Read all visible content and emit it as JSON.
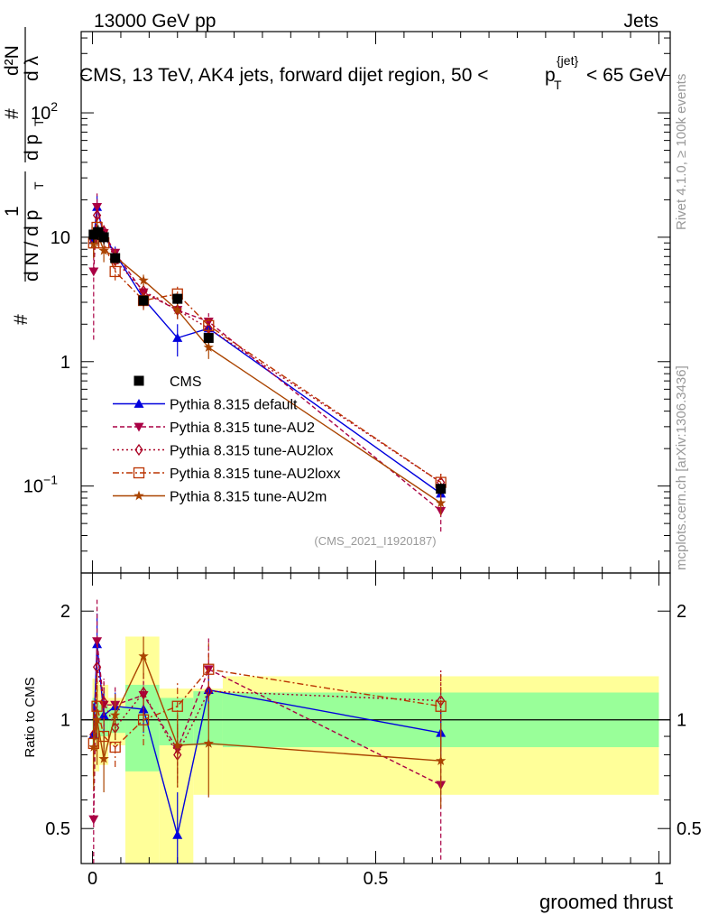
{
  "header": {
    "left": "13000 GeV pp",
    "right": "Jets"
  },
  "title": {
    "prefix": "CMS, 13 TeV, AK4 jets, forward dijet region, 50 <",
    "p": "p",
    "sub": "T",
    "sup": "{jet}",
    "suffix": "< 65 GeV"
  },
  "side_labels": {
    "rivet": "Rivet 4.1.0, ≥ 100k events",
    "mcplots": "mcplots.cern.ch [arXiv:1306.3436]"
  },
  "analysis_ref": "(CMS_2021_I1920187)",
  "ylabel_top": {
    "hash1": "#",
    "one": "1",
    "dn": "d N / d p",
    "dn_sub": "T",
    "hash2": "#",
    "d2n": "d²N",
    "dpt": "d p",
    "dpt_sub": "T",
    "dlam": "d λ"
  },
  "chart_data": [
    {
      "type": "scatter",
      "panel": "main",
      "xlabel": "groomed thrust",
      "ylabel": "1/dN/dpT d²N/dpT dλ",
      "yscale": "log",
      "xlim": [
        -0.02,
        1.02
      ],
      "ylim": [
        0.02,
        450
      ],
      "ytick_labels": [
        {
          "value": 0.1,
          "base": "10",
          "exp": "−1"
        },
        {
          "value": 1,
          "base": "1",
          "exp": ""
        },
        {
          "value": 10,
          "base": "10",
          "exp": ""
        },
        {
          "value": 100,
          "base": "10",
          "exp": "2"
        }
      ],
      "series": [
        {
          "name": "CMS",
          "color": "#000000",
          "marker": "square",
          "line": "none",
          "x": [
            0.002,
            0.01,
            0.02,
            0.04,
            0.09,
            0.15,
            0.205,
            0.615
          ],
          "y": [
            10.5,
            11.0,
            10.0,
            6.8,
            3.1,
            3.2,
            1.55,
            0.095
          ],
          "err": [
            1.5,
            1.5,
            1.2,
            0.6,
            0.3,
            0.3,
            0.15,
            0.01
          ]
        },
        {
          "name": "Pythia 8.315 default",
          "color": "#0000dd",
          "marker": "triangle-up",
          "line": "solid",
          "x": [
            0.002,
            0.008,
            0.02,
            0.04,
            0.09,
            0.15,
            0.205,
            0.615
          ],
          "y": [
            9.5,
            17.5,
            10.3,
            7.4,
            3.2,
            1.55,
            1.85,
            0.087
          ],
          "err": [
            2.5,
            4.0,
            2.0,
            1.0,
            0.5,
            0.45,
            0.35,
            0.015
          ]
        },
        {
          "name": "Pythia 8.315 tune-AU2",
          "color": "#aa0044",
          "marker": "triangle-down",
          "line": "dashed",
          "x": [
            0.002,
            0.008,
            0.02,
            0.04,
            0.09,
            0.15,
            0.205,
            0.615
          ],
          "y": [
            5.3,
            17.5,
            10.8,
            7.5,
            3.6,
            2.6,
            2.1,
            0.063
          ],
          "err": [
            3.8,
            5.0,
            2.0,
            1.0,
            0.5,
            0.4,
            0.35,
            0.02
          ]
        },
        {
          "name": "Pythia 8.315 tune-AU2lox",
          "color": "#aa0022",
          "marker": "diamond",
          "line": "dotted",
          "x": [
            0.002,
            0.008,
            0.02,
            0.04,
            0.09,
            0.15,
            0.205,
            0.615
          ],
          "y": [
            9.5,
            15.0,
            11.2,
            6.5,
            3.7,
            2.6,
            1.85,
            0.107
          ],
          "err": [
            2.5,
            3.5,
            1.8,
            1.0,
            0.5,
            0.4,
            0.3,
            0.02
          ]
        },
        {
          "name": "Pythia 8.315 tune-AU2loxx",
          "color": "#bb3300",
          "marker": "open-square",
          "line": "dashdot",
          "x": [
            0.002,
            0.008,
            0.02,
            0.04,
            0.09,
            0.15,
            0.205,
            0.615
          ],
          "y": [
            9.0,
            12.0,
            9.0,
            5.3,
            3.1,
            3.5,
            1.95,
            0.107
          ],
          "err": [
            2.0,
            3.0,
            1.5,
            0.8,
            0.5,
            0.5,
            0.3,
            0.02
          ]
        },
        {
          "name": "Pythia 8.315 tune-AU2m",
          "color": "#aa4400",
          "marker": "star",
          "line": "solid",
          "x": [
            0.002,
            0.008,
            0.02,
            0.04,
            0.09,
            0.15,
            0.205,
            0.615
          ],
          "y": [
            8.8,
            11.0,
            7.8,
            7.0,
            4.5,
            2.6,
            1.3,
            0.073
          ],
          "err": [
            2.0,
            2.5,
            1.5,
            1.0,
            0.5,
            0.4,
            0.25,
            0.015
          ]
        }
      ]
    },
    {
      "type": "scatter",
      "panel": "ratio",
      "ylabel": "Ratio to CMS",
      "xlabel": "groomed thrust",
      "yscale": "log",
      "xlim": [
        -0.02,
        1.02
      ],
      "ylim": [
        0.4,
        2.55
      ],
      "yticks": [
        0.5,
        1,
        2
      ],
      "ytick_labels": [
        "0.5",
        "1",
        "2"
      ],
      "xticks": [
        0,
        0.5,
        1
      ],
      "xtick_labels": [
        "0",
        "0.5",
        "1"
      ],
      "bands": [
        {
          "x0": 0.0,
          "x1": 0.005,
          "inner": [
            0.85,
            1.15
          ],
          "outer": [
            0.7,
            1.3
          ]
        },
        {
          "x0": 0.005,
          "x1": 0.012,
          "inner": [
            0.88,
            1.12
          ],
          "outer": [
            0.72,
            1.28
          ]
        },
        {
          "x0": 0.012,
          "x1": 0.028,
          "inner": [
            0.9,
            1.1
          ],
          "outer": [
            0.75,
            1.25
          ]
        },
        {
          "x0": 0.028,
          "x1": 0.058,
          "inner": [
            0.92,
            1.08
          ],
          "outer": [
            0.85,
            1.15
          ]
        },
        {
          "x0": 0.058,
          "x1": 0.118,
          "inner": [
            0.72,
            1.25
          ],
          "outer": [
            0.4,
            1.7
          ]
        },
        {
          "x0": 0.118,
          "x1": 0.178,
          "inner": [
            0.85,
            1.15
          ],
          "outer": [
            0.4,
            1.22
          ]
        },
        {
          "x0": 0.178,
          "x1": 0.23,
          "inner": [
            0.85,
            1.2
          ],
          "outer": [
            0.62,
            1.22
          ]
        },
        {
          "x0": 0.23,
          "x1": 1.0,
          "inner": [
            0.84,
            1.19
          ],
          "outer": [
            0.62,
            1.32
          ]
        }
      ],
      "series": [
        {
          "name": "Pythia 8.315 default",
          "color": "#0000dd",
          "marker": "triangle-up",
          "line": "solid",
          "x": [
            0.002,
            0.008,
            0.02,
            0.04,
            0.09,
            0.15,
            0.205,
            0.615
          ],
          "y": [
            0.91,
            1.62,
            1.03,
            1.09,
            1.07,
            0.48,
            1.21,
            0.92
          ],
          "err": [
            0.2,
            0.35,
            0.2,
            0.1,
            0.15,
            0.15,
            0.2,
            0.15
          ]
        },
        {
          "name": "Pythia 8.315 tune-AU2",
          "color": "#aa0044",
          "marker": "triangle-down",
          "line": "dashed",
          "x": [
            0.002,
            0.008,
            0.02,
            0.04,
            0.09,
            0.15,
            0.205,
            0.615
          ],
          "y": [
            0.53,
            1.65,
            1.1,
            1.1,
            1.17,
            0.83,
            1.38,
            0.66
          ],
          "err": [
            0.35,
            0.5,
            0.2,
            0.15,
            0.18,
            0.15,
            0.3,
            0.25
          ]
        },
        {
          "name": "Pythia 8.315 tune-AU2lox",
          "color": "#aa0022",
          "marker": "diamond",
          "line": "dotted",
          "x": [
            0.002,
            0.008,
            0.02,
            0.04,
            0.09,
            0.15,
            0.205,
            0.615
          ],
          "y": [
            0.91,
            1.4,
            1.12,
            0.95,
            1.19,
            0.8,
            1.2,
            1.13
          ],
          "err": [
            0.2,
            0.3,
            0.18,
            0.12,
            0.16,
            0.15,
            0.2,
            0.25
          ]
        },
        {
          "name": "Pythia 8.315 tune-AU2loxx",
          "color": "#bb3300",
          "marker": "open-square",
          "line": "dashdot",
          "x": [
            0.002,
            0.008,
            0.02,
            0.04,
            0.09,
            0.15,
            0.205,
            0.615
          ],
          "y": [
            0.86,
            1.09,
            0.9,
            0.84,
            1.0,
            1.09,
            1.38,
            1.09
          ],
          "err": [
            0.2,
            0.25,
            0.15,
            0.1,
            0.15,
            0.18,
            0.25,
            0.25
          ]
        },
        {
          "name": "Pythia 8.315 tune-AU2m",
          "color": "#aa4400",
          "marker": "star",
          "line": "solid",
          "x": [
            0.002,
            0.008,
            0.02,
            0.04,
            0.09,
            0.15,
            0.205,
            0.615
          ],
          "y": [
            0.84,
            1.0,
            0.78,
            1.03,
            1.5,
            0.85,
            0.86,
            0.77
          ],
          "err": [
            0.2,
            0.25,
            0.15,
            0.15,
            0.2,
            0.2,
            0.25,
            0.2
          ]
        }
      ]
    }
  ]
}
